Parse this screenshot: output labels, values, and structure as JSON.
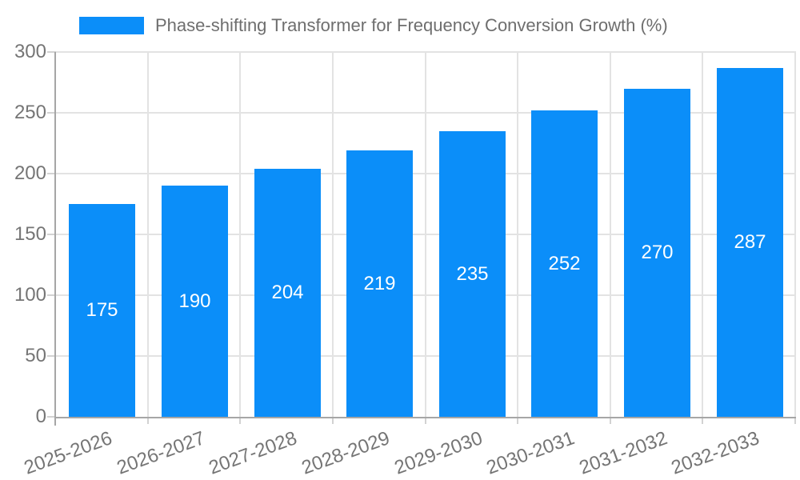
{
  "legend": {
    "series_label": "Phase-shifting Transformer for Frequency Conversion Growth (%)"
  },
  "chart_data": {
    "type": "bar",
    "title": "Phase-shifting Transformer for Frequency Conversion Growth (%)",
    "categories": [
      "2025-2026",
      "2026-2027",
      "2027-2028",
      "2028-2029",
      "2029-2030",
      "2030-2031",
      "2031-2032",
      "2032-2033"
    ],
    "values": [
      175,
      190,
      204,
      219,
      235,
      252,
      270,
      287
    ],
    "xlabel": "",
    "ylabel": "",
    "ylim": [
      0,
      300
    ],
    "yticks": [
      0,
      50,
      100,
      150,
      200,
      250,
      300
    ],
    "grid": true,
    "legend_position": "top",
    "value_labels_inside_bars": true,
    "x_label_rotation_deg": -20,
    "colors": {
      "bar": "#0b8ef9",
      "bar_value_text": "#ffffff",
      "grid_line": "#e3e3e3",
      "axis_line": "#a6a6a6",
      "tick_mark": "#d2d2d2",
      "tick_text": "#757575",
      "title_text": "#6e6e6e",
      "background": "#ffffff"
    }
  }
}
